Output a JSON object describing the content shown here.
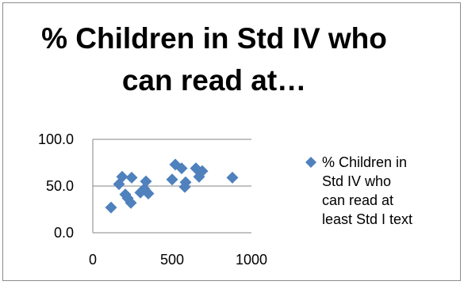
{
  "chart_data": {
    "type": "scatter",
    "title": "% Children in Std IV who can read at…",
    "xlabel": "",
    "ylabel": "",
    "xlim": [
      0,
      1000
    ],
    "ylim": [
      0,
      100
    ],
    "xticks": [
      "0",
      "500",
      "1000"
    ],
    "yticks": [
      "0.0",
      "50.0",
      "100.0"
    ],
    "grid": "horizontal",
    "legend_position": "right",
    "marker_color": "#4f81bd",
    "series": [
      {
        "name": "% Children in Std IV who can read at least Std I text",
        "points": [
          {
            "x": 115,
            "y": 27
          },
          {
            "x": 165,
            "y": 52
          },
          {
            "x": 185,
            "y": 60
          },
          {
            "x": 205,
            "y": 41
          },
          {
            "x": 220,
            "y": 37
          },
          {
            "x": 240,
            "y": 32
          },
          {
            "x": 245,
            "y": 59
          },
          {
            "x": 300,
            "y": 43
          },
          {
            "x": 325,
            "y": 47
          },
          {
            "x": 335,
            "y": 55
          },
          {
            "x": 350,
            "y": 42
          },
          {
            "x": 500,
            "y": 57
          },
          {
            "x": 520,
            "y": 73
          },
          {
            "x": 560,
            "y": 69
          },
          {
            "x": 580,
            "y": 49
          },
          {
            "x": 585,
            "y": 54
          },
          {
            "x": 650,
            "y": 69
          },
          {
            "x": 670,
            "y": 60
          },
          {
            "x": 690,
            "y": 66
          },
          {
            "x": 880,
            "y": 59
          }
        ]
      }
    ]
  },
  "legend": {
    "label_lines": [
      "% Children in",
      "Std IV who",
      "can read at",
      "least Std I text"
    ]
  }
}
